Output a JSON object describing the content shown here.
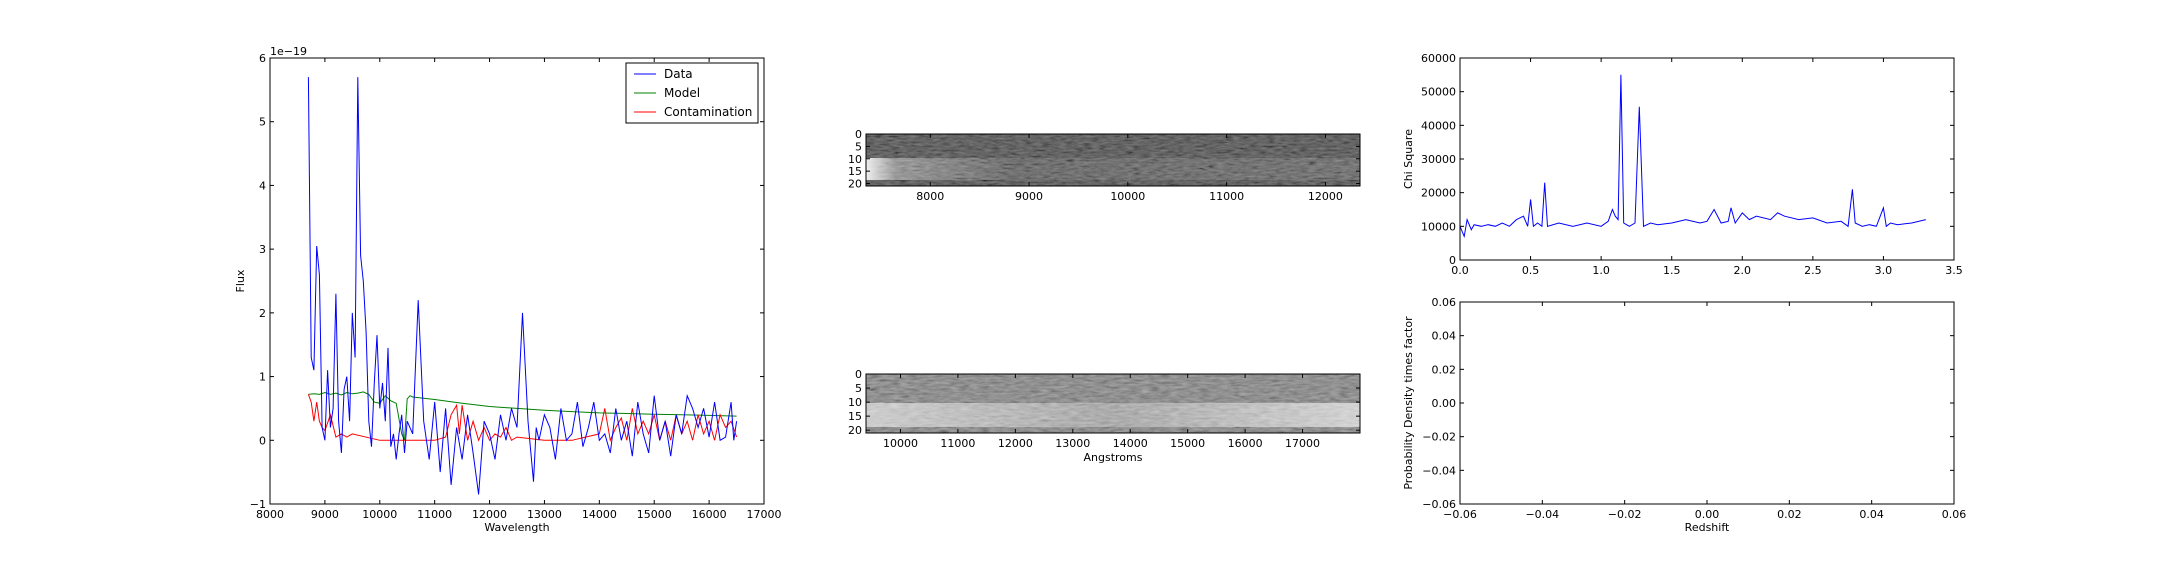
{
  "chart_data": [
    {
      "type": "line",
      "id": "spectrum",
      "xlabel": "Wavelength",
      "ylabel": "Flux",
      "offset_text": "1e−19",
      "xlim": [
        8000,
        17000
      ],
      "ylim": [
        -1,
        6
      ],
      "xticks": [
        "8000",
        "9000",
        "10000",
        "11000",
        "12000",
        "13000",
        "14000",
        "15000",
        "16000",
        "17000"
      ],
      "yticks": [
        "−1",
        "0",
        "1",
        "2",
        "3",
        "4",
        "5",
        "6"
      ],
      "legend_position": "upper-right",
      "series": [
        {
          "name": "Data",
          "color": "#0000ff",
          "x": [
            8700,
            8750,
            8800,
            8850,
            8900,
            8950,
            9000,
            9050,
            9100,
            9150,
            9200,
            9250,
            9300,
            9350,
            9400,
            9450,
            9500,
            9550,
            9600,
            9650,
            9700,
            9750,
            9800,
            9850,
            9900,
            9950,
            10000,
            10050,
            10100,
            10150,
            10200,
            10250,
            10300,
            10350,
            10400,
            10450,
            10500,
            10600,
            10700,
            10800,
            10900,
            11000,
            11100,
            11200,
            11300,
            11400,
            11500,
            11600,
            11700,
            11800,
            11900,
            12000,
            12100,
            12200,
            12300,
            12400,
            12500,
            12600,
            12700,
            12800,
            12850,
            12900,
            13000,
            13100,
            13200,
            13300,
            13400,
            13500,
            13600,
            13700,
            13800,
            13900,
            14000,
            14100,
            14200,
            14300,
            14400,
            14500,
            14600,
            14700,
            14800,
            14900,
            15000,
            15100,
            15200,
            15300,
            15400,
            15500,
            15600,
            15700,
            15800,
            15900,
            16000,
            16100,
            16200,
            16300,
            16400,
            16450,
            16500
          ],
          "y": [
            5.7,
            1.3,
            1.1,
            3.05,
            2.6,
            0.2,
            0.0,
            1.1,
            0.2,
            0.5,
            2.3,
            0.3,
            -0.2,
            0.8,
            1.0,
            0.3,
            2.0,
            1.3,
            5.7,
            2.9,
            2.5,
            1.7,
            0.3,
            -0.1,
            0.9,
            1.65,
            0.5,
            0.9,
            0.3,
            1.45,
            -0.1,
            0.1,
            -0.3,
            0.1,
            0.4,
            -0.2,
            0.3,
            0.1,
            2.2,
            0.3,
            -0.3,
            0.6,
            -0.5,
            0.5,
            -0.7,
            0.2,
            -0.3,
            0.4,
            -0.2,
            -0.85,
            0.3,
            0.1,
            -0.3,
            0.4,
            0.0,
            0.5,
            0.2,
            2.0,
            0.3,
            -0.65,
            0.2,
            0.0,
            0.4,
            0.2,
            -0.3,
            0.5,
            0.0,
            0.1,
            0.6,
            -0.1,
            0.2,
            0.6,
            0.0,
            0.1,
            -0.2,
            0.5,
            0.0,
            0.3,
            -0.25,
            0.6,
            0.1,
            -0.2,
            0.7,
            0.0,
            0.3,
            -0.25,
            0.4,
            0.1,
            0.7,
            0.5,
            0.2,
            0.5,
            0.05,
            0.6,
            0.0,
            0.05,
            0.6,
            0.0,
            0.3
          ]
        },
        {
          "name": "Model",
          "color": "#008000",
          "x": [
            8700,
            8800,
            8900,
            9000,
            9100,
            9200,
            9300,
            9400,
            9500,
            9600,
            9700,
            9800,
            9900,
            10000,
            10100,
            10200,
            10300,
            10400,
            10450,
            10500,
            10550,
            10600,
            11000,
            11500,
            12000,
            12500,
            13000,
            13500,
            14000,
            14500,
            15000,
            15500,
            16000,
            16500
          ],
          "y": [
            0.72,
            0.73,
            0.72,
            0.75,
            0.72,
            0.74,
            0.71,
            0.75,
            0.73,
            0.74,
            0.76,
            0.72,
            0.6,
            0.58,
            0.7,
            0.62,
            0.58,
            0.1,
            0.0,
            0.65,
            0.7,
            0.68,
            0.64,
            0.58,
            0.53,
            0.5,
            0.47,
            0.45,
            0.43,
            0.42,
            0.41,
            0.4,
            0.39,
            0.38
          ]
        },
        {
          "name": "Contamination",
          "color": "#ff0000",
          "x": [
            8700,
            8750,
            8800,
            8850,
            8900,
            8950,
            9000,
            9100,
            9200,
            9300,
            9400,
            9500,
            10000,
            10500,
            11000,
            11200,
            11300,
            11400,
            11450,
            11500,
            11600,
            11700,
            11800,
            11900,
            12000,
            12100,
            12200,
            12300,
            12400,
            12500,
            13000,
            13500,
            14000,
            14100,
            14200,
            14300,
            14400,
            14500,
            14600,
            14700,
            14800,
            14900,
            15000,
            15100,
            15200,
            15300,
            15400,
            15500,
            15600,
            15700,
            15800,
            15900,
            16000,
            16100,
            16200,
            16300,
            16400,
            16500
          ],
          "y": [
            0.72,
            0.6,
            0.3,
            0.6,
            0.3,
            0.2,
            0.15,
            0.4,
            0.05,
            0.1,
            0.05,
            0.1,
            0.0,
            0.0,
            0.0,
            0.05,
            0.4,
            0.55,
            0.1,
            0.55,
            0.0,
            0.3,
            0.0,
            0.2,
            0.0,
            0.1,
            0.05,
            0.2,
            0.0,
            0.05,
            0.0,
            0.0,
            0.1,
            0.5,
            0.0,
            0.2,
            0.35,
            0.0,
            0.5,
            0.1,
            0.3,
            0.1,
            0.4,
            0.0,
            0.3,
            0.0,
            0.4,
            0.1,
            0.3,
            0.0,
            0.4,
            0.1,
            0.3,
            0.0,
            0.4,
            0.2,
            0.3,
            0.05
          ]
        }
      ]
    },
    {
      "type": "heatmap",
      "id": "image-top",
      "xlim": [
        7350,
        12350
      ],
      "ylim": [
        21,
        0
      ],
      "xticks": [
        "8000",
        "9000",
        "10000",
        "11000",
        "12000"
      ],
      "yticks": [
        "0",
        "5",
        "10",
        "15",
        "20"
      ],
      "xlabel": ""
    },
    {
      "type": "heatmap",
      "id": "image-bottom",
      "xlim": [
        9400,
        18000
      ],
      "ylim": [
        21,
        0
      ],
      "xticks": [
        "10000",
        "11000",
        "12000",
        "13000",
        "14000",
        "15000",
        "16000",
        "17000"
      ],
      "yticks": [
        "0",
        "5",
        "10",
        "15",
        "20"
      ],
      "xlabel": "Angstroms"
    },
    {
      "type": "line",
      "id": "chi-square",
      "xlabel": "",
      "ylabel": "Chi Square",
      "xlim": [
        0.0,
        3.5
      ],
      "ylim": [
        0,
        60000
      ],
      "xticks": [
        "0.0",
        "0.5",
        "1.0",
        "1.5",
        "2.0",
        "2.5",
        "3.0",
        "3.5"
      ],
      "yticks": [
        "0",
        "10000",
        "20000",
        "30000",
        "40000",
        "50000",
        "60000"
      ],
      "series": [
        {
          "color": "#0000ff",
          "x": [
            0.0,
            0.03,
            0.05,
            0.08,
            0.1,
            0.15,
            0.2,
            0.25,
            0.3,
            0.35,
            0.4,
            0.45,
            0.48,
            0.5,
            0.52,
            0.55,
            0.58,
            0.6,
            0.62,
            0.7,
            0.8,
            0.9,
            1.0,
            1.05,
            1.08,
            1.1,
            1.12,
            1.14,
            1.16,
            1.18,
            1.2,
            1.24,
            1.27,
            1.3,
            1.35,
            1.4,
            1.5,
            1.6,
            1.7,
            1.75,
            1.8,
            1.85,
            1.9,
            1.92,
            1.95,
            2.0,
            2.05,
            2.1,
            2.2,
            2.25,
            2.3,
            2.4,
            2.5,
            2.6,
            2.7,
            2.75,
            2.78,
            2.8,
            2.85,
            2.9,
            2.95,
            3.0,
            3.02,
            3.05,
            3.1,
            3.2,
            3.3
          ],
          "y": [
            10000,
            7000,
            12000,
            9000,
            10500,
            10000,
            10500,
            10000,
            11000,
            10000,
            12000,
            13000,
            10000,
            18000,
            10000,
            11000,
            10000,
            23000,
            10000,
            11000,
            10000,
            11000,
            10000,
            11500,
            15000,
            13000,
            12000,
            55000,
            11000,
            10500,
            10000,
            11000,
            45500,
            10000,
            11000,
            10500,
            11000,
            12000,
            11000,
            11500,
            15000,
            11000,
            11500,
            15500,
            11000,
            14000,
            12000,
            13000,
            12000,
            14000,
            13000,
            12000,
            12500,
            11000,
            11500,
            10000,
            21000,
            11000,
            10000,
            10500,
            10000,
            15500,
            10000,
            11000,
            10500,
            11000,
            12000
          ]
        }
      ]
    },
    {
      "type": "line",
      "id": "probability",
      "xlabel": "Redshift",
      "ylabel": "Probability Density times factor",
      "xlim": [
        -0.06,
        0.06
      ],
      "ylim": [
        -0.06,
        0.06
      ],
      "xticks": [
        "−0.06",
        "−0.04",
        "−0.02",
        "0.00",
        "0.02",
        "0.04",
        "0.06"
      ],
      "yticks": [
        "−0.06",
        "−0.04",
        "−0.02",
        "0.00",
        "0.02",
        "0.04",
        "0.06"
      ],
      "series": []
    }
  ]
}
